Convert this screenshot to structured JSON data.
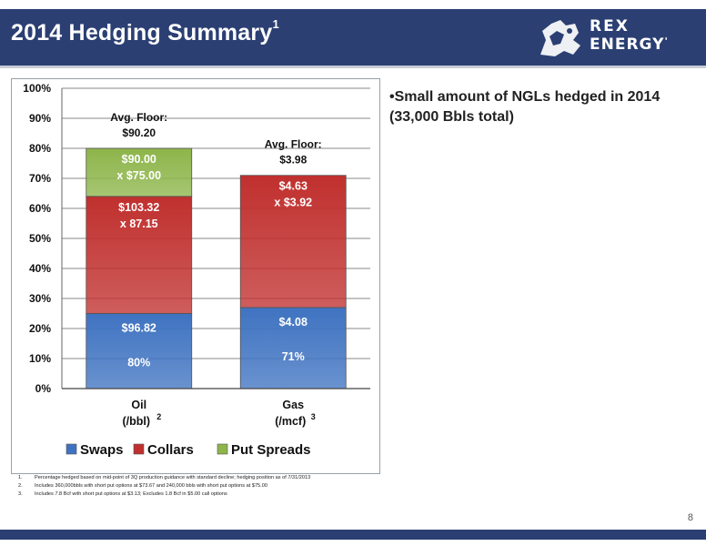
{
  "slide": {
    "title": "2014 Hedging Summary",
    "title_sup": "1",
    "logo_line1": "REX",
    "logo_line2": "ENERGY",
    "logo_mark": "'",
    "bullet": "•Small amount of NGLs hedged in 2014 (33,000 Bbls total)",
    "footnotes": [
      {
        "num": "1.",
        "text": "Percentage hedged based on mid-point of 3Q production guidance with standard decline; hedging position as of 7/31/2013"
      },
      {
        "num": "2.",
        "text": "Includes 360,000bbls with short put options at $73.67 and 240,000 bbls with short put options at $75.00"
      },
      {
        "num": "3.",
        "text": "Includes 7.8 Bcf with short put options at $3.13; Excludes 1.8 Bcf in $5.00 call options"
      }
    ],
    "page_number": "8"
  },
  "chart_data": {
    "type": "bar",
    "stacked": true,
    "ylim": [
      0,
      100
    ],
    "y_ticks": [
      "0%",
      "10%",
      "20%",
      "30%",
      "40%",
      "50%",
      "60%",
      "70%",
      "80%",
      "90%",
      "100%"
    ],
    "grid": true,
    "legend_position": "bottom",
    "categories": [
      {
        "name": "Oil",
        "unit": "(/bbl)",
        "sup": "2"
      },
      {
        "name": "Gas",
        "unit": "(/mcf)",
        "sup": "3"
      }
    ],
    "series": [
      {
        "name": "Swaps",
        "color": "#3f73c1",
        "values": [
          25,
          27
        ],
        "labels": [
          [
            "$96.82",
            "80%"
          ],
          [
            "$4.08",
            "71%"
          ]
        ]
      },
      {
        "name": "Collars",
        "color": "#c0302e",
        "values": [
          39,
          44
        ],
        "labels": [
          [
            "$103.32",
            "x 87.15"
          ],
          [
            "$4.63",
            "x $3.92"
          ]
        ]
      },
      {
        "name": "Put Spreads",
        "color": "#8db54a",
        "values": [
          16,
          0
        ],
        "labels": [
          [
            "$90.00",
            "x $75.00"
          ],
          []
        ]
      }
    ],
    "annotations": [
      {
        "category": 0,
        "lines": [
          "Avg. Floor:",
          "$90.20"
        ]
      },
      {
        "category": 1,
        "lines": [
          "Avg. Floor:",
          "$3.98"
        ]
      }
    ]
  }
}
